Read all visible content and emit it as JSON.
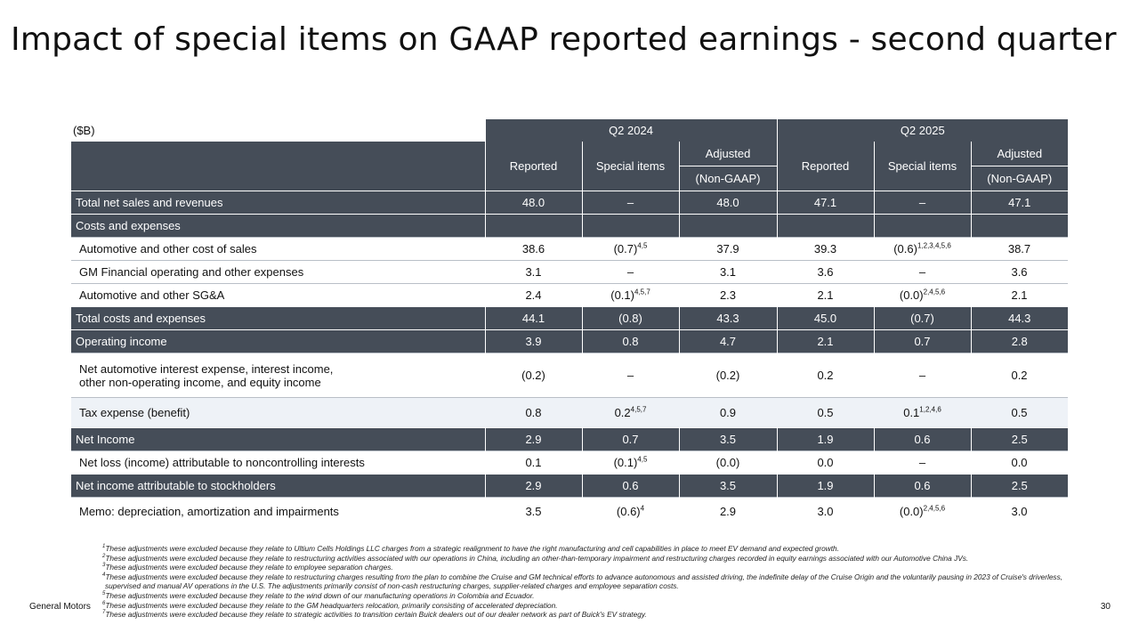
{
  "title": "Impact of special items on GAAP reported earnings - second quarter",
  "table": {
    "unit": "($B)",
    "periods": [
      "Q2 2024",
      "Q2 2025"
    ],
    "columns": {
      "reported": "Reported",
      "special": "Special items",
      "adjusted_top": "Adjusted",
      "adjusted_bottom": "(Non-GAAP)"
    },
    "rows": [
      {
        "label": "Total net sales and revenues",
        "style": "dark",
        "values": [
          "48.0",
          "–",
          "48.0",
          "47.1",
          "–",
          "47.1"
        ],
        "sups": [
          "",
          "",
          "",
          "",
          "",
          ""
        ]
      },
      {
        "label": "Costs and expenses",
        "style": "dark",
        "values": [
          "",
          "",
          "",
          "",
          "",
          ""
        ],
        "sups": [
          "",
          "",
          "",
          "",
          "",
          ""
        ]
      },
      {
        "label": "Automotive and other cost of sales",
        "style": "white",
        "values": [
          "38.6",
          "(0.7)",
          "37.9",
          "39.3",
          "(0.6)",
          "38.7"
        ],
        "sups": [
          "",
          "4,5",
          "",
          "",
          "1,2,3,4,5,6",
          ""
        ]
      },
      {
        "label": "GM Financial operating and other expenses",
        "style": "white",
        "values": [
          "3.1",
          "–",
          "3.1",
          "3.6",
          "–",
          "3.6"
        ],
        "sups": [
          "",
          "",
          "",
          "",
          "",
          ""
        ]
      },
      {
        "label": "Automotive and other SG&A",
        "style": "white",
        "values": [
          "2.4",
          "(0.1)",
          "2.3",
          "2.1",
          "(0.0)",
          "2.1"
        ],
        "sups": [
          "",
          "4,5,7",
          "",
          "",
          "2,4,5,6",
          ""
        ]
      },
      {
        "label": "Total costs and expenses",
        "style": "dark",
        "values": [
          "44.1",
          "(0.8)",
          "43.3",
          "45.0",
          "(0.7)",
          "44.3"
        ],
        "sups": [
          "",
          "",
          "",
          "",
          "",
          ""
        ]
      },
      {
        "label": "Operating income",
        "style": "dark",
        "values": [
          "3.9",
          "0.8",
          "4.7",
          "2.1",
          "0.7",
          "2.8"
        ],
        "sups": [
          "",
          "",
          "",
          "",
          "",
          ""
        ]
      },
      {
        "label": "Net automotive interest expense, interest income,",
        "label2": "other non-operating income, and equity income",
        "style": "white tall",
        "values": [
          "(0.2)",
          "–",
          "(0.2)",
          "0.2",
          "–",
          "0.2"
        ],
        "sups": [
          "",
          "",
          "",
          "",
          "",
          ""
        ]
      },
      {
        "label": "Tax expense (benefit)",
        "style": "light",
        "values": [
          "0.8",
          "0.2",
          "0.9",
          "0.5",
          "0.1",
          "0.5"
        ],
        "sups": [
          "",
          "4,5,7",
          "",
          "",
          "1,2,4,6",
          ""
        ]
      },
      {
        "label": "Net Income",
        "style": "dark",
        "values": [
          "2.9",
          "0.7",
          "3.5",
          "1.9",
          "0.6",
          "2.5"
        ],
        "sups": [
          "",
          "",
          "",
          "",
          "",
          ""
        ]
      },
      {
        "label": "Net loss (income) attributable to noncontrolling interests",
        "style": "white",
        "values": [
          "0.1",
          "(0.1)",
          "(0.0)",
          "0.0",
          "–",
          "0.0"
        ],
        "sups": [
          "",
          "4,5",
          "",
          "",
          "",
          ""
        ]
      },
      {
        "label": "Net income attributable to stockholders",
        "style": "dark",
        "values": [
          "2.9",
          "0.6",
          "3.5",
          "1.9",
          "0.6",
          "2.5"
        ],
        "sups": [
          "",
          "",
          "",
          "",
          "",
          ""
        ]
      },
      {
        "label": "Memo: depreciation, amortization and impairments",
        "style": "white memo",
        "values": [
          "3.5",
          "(0.6)",
          "2.9",
          "3.0",
          "(0.0)",
          "3.0"
        ],
        "sups": [
          "",
          "4",
          "",
          "",
          "2,4,5,6",
          ""
        ]
      }
    ]
  },
  "footnotes": [
    {
      "num": "1",
      "text": "These adjustments were excluded because they relate to Ultium Cells Holdings LLC charges from a strategic realignment to have the right manufacturing and cell capabilities in place to meet EV demand and expected growth."
    },
    {
      "num": "2",
      "text": "These adjustments were excluded because they relate to restructuring activities associated with our operations in China, including an other-than-temporary impairment and restructuring charges recorded in equity earnings associated with our Automotive China JVs."
    },
    {
      "num": "3",
      "text": "These adjustments were excluded because they relate to employee separation charges."
    },
    {
      "num": "4",
      "text": "These adjustments were excluded because they relate to restructuring charges resulting from the plan to combine the Cruise and GM technical efforts to advance autonomous and assisted driving, the indefinite delay of the Cruise Origin and the voluntarily pausing in 2023 of Cruise's driverless, supervised and manual AV operations in the U.S. The adjustments primarily consist of non-cash restructuring charges, supplier-related charges and employee separation costs."
    },
    {
      "num": "5",
      "text": "These adjustments were excluded because they relate to the wind down of our manufacturing operations in Colombia and Ecuador."
    },
    {
      "num": "6",
      "text": "These adjustments were excluded because they relate to the GM headquarters relocation, primarily consisting of accelerated depreciation."
    },
    {
      "num": "7",
      "text": "These adjustments were excluded because they relate to strategic activities to transition certain Buick dealers out of our dealer network as part of Buick's EV strategy."
    }
  ],
  "footer": {
    "brand": "General Motors",
    "page_number": "30"
  }
}
